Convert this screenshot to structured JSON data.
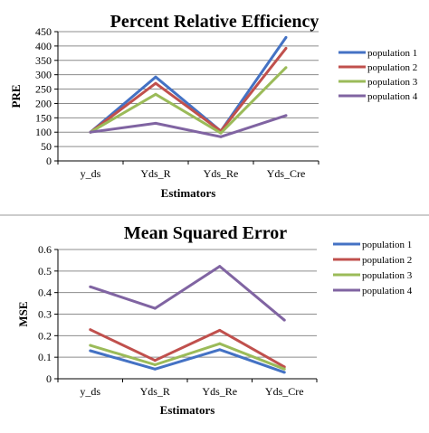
{
  "chart_data": [
    {
      "type": "line",
      "title": "Percent Relative Efficiency",
      "xlabel": "Estimators",
      "ylabel": "PRE",
      "categories": [
        "y_ds",
        "Yds_R",
        "Yds_Re",
        "Yds_Cre"
      ],
      "ylim": [
        0,
        450
      ],
      "yticks": [
        "0",
        "50",
        "100",
        "150",
        "200",
        "250",
        "300",
        "350",
        "400",
        "450"
      ],
      "grid": true,
      "legend_position": "right",
      "series": [
        {
          "name": "population 1",
          "color": "#4472c4",
          "values": [
            100,
            292,
            104,
            430
          ]
        },
        {
          "name": "population 2",
          "color": "#c0504d",
          "values": [
            100,
            270,
            104,
            392
          ]
        },
        {
          "name": "population 3",
          "color": "#9bbb59",
          "values": [
            100,
            232,
            97,
            325
          ]
        },
        {
          "name": "population 4",
          "color": "#8064a2",
          "values": [
            100,
            131,
            84,
            158
          ]
        }
      ]
    },
    {
      "type": "line",
      "title": "Mean Squared Error",
      "xlabel": "Estimators",
      "ylabel": "MSE",
      "categories": [
        "y_ds",
        "Yds_R",
        "Yds_Re",
        "Yds_Cre"
      ],
      "ylim": [
        0,
        0.6
      ],
      "yticks": [
        "0",
        "0.1",
        "0.2",
        "0.3",
        "0.4",
        "0.5",
        "0.6"
      ],
      "grid": true,
      "legend_position": "right",
      "series": [
        {
          "name": "population 1",
          "color": "#4472c4",
          "values": [
            0.13,
            0.045,
            0.135,
            0.03
          ]
        },
        {
          "name": "population 2",
          "color": "#c0504d",
          "values": [
            0.228,
            0.085,
            0.225,
            0.055
          ]
        },
        {
          "name": "population 3",
          "color": "#9bbb59",
          "values": [
            0.155,
            0.065,
            0.163,
            0.045
          ]
        },
        {
          "name": "population 4",
          "color": "#8064a2",
          "values": [
            0.427,
            0.327,
            0.522,
            0.272
          ]
        }
      ]
    }
  ]
}
